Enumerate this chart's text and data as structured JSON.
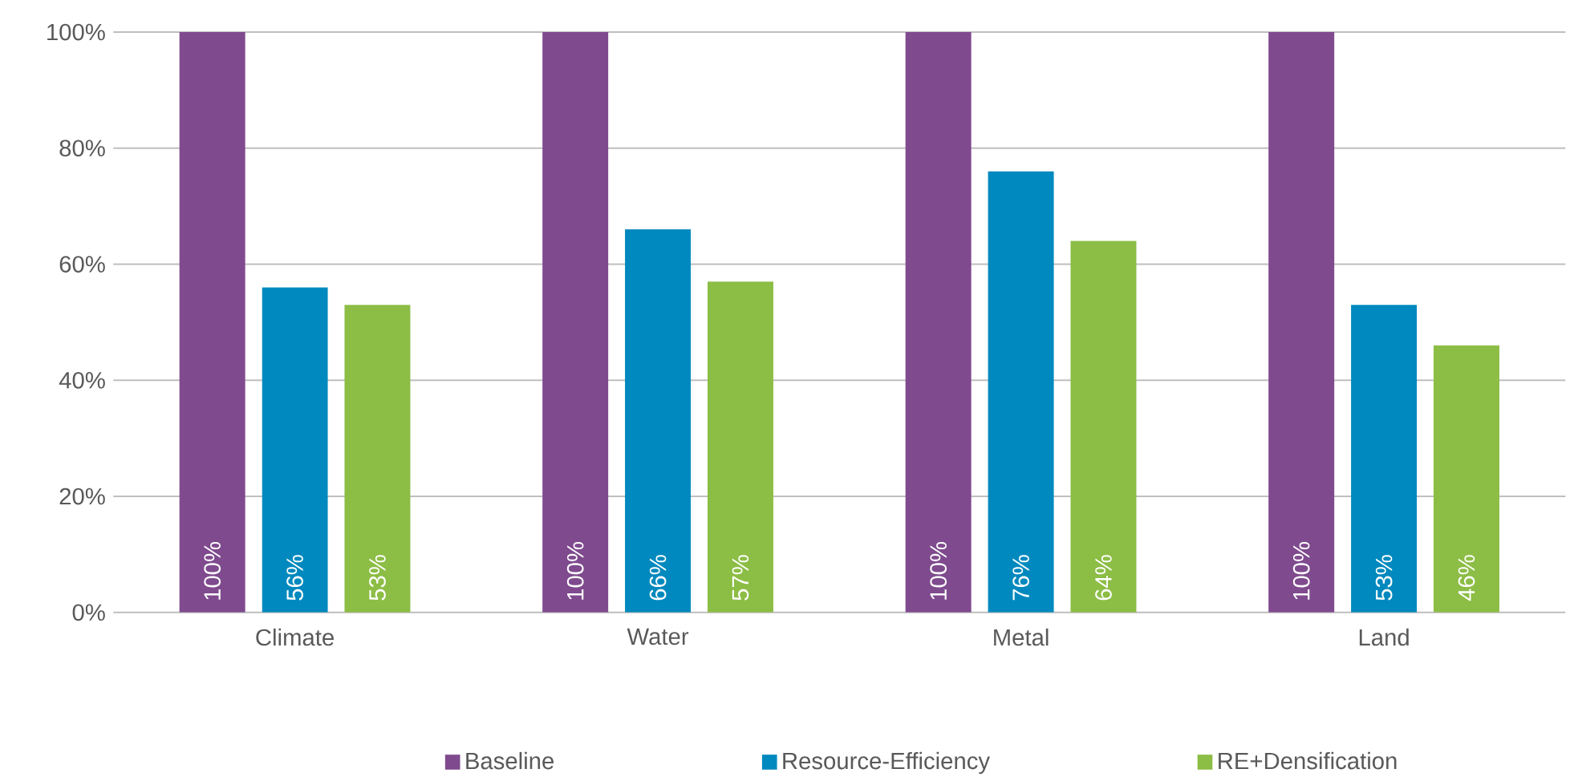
{
  "chart_data": {
    "type": "bar",
    "categories": [
      "Climate",
      "Water",
      "Metal",
      "Land"
    ],
    "series": [
      {
        "name": "Baseline",
        "color": "#7f4a8e",
        "values": [
          100,
          100,
          100,
          100
        ],
        "value_labels": [
          "100%",
          "100%",
          "100%",
          "100%"
        ]
      },
      {
        "name": "Resource-Efficiency",
        "color": "#0089be",
        "values": [
          56,
          66,
          76,
          53
        ],
        "value_labels": [
          "56%",
          "66%",
          "76%",
          "53%"
        ]
      },
      {
        "name": "RE+Densification",
        "color": "#8cbd45",
        "values": [
          53,
          57,
          64,
          46
        ],
        "value_labels": [
          "53%",
          "57%",
          "64%",
          "46%"
        ]
      }
    ],
    "ylim": [
      0,
      100
    ],
    "yticks": [
      {
        "value": 0,
        "label": "0%"
      },
      {
        "value": 20,
        "label": "20%"
      },
      {
        "value": 40,
        "label": "40%"
      },
      {
        "value": 60,
        "label": "60%"
      },
      {
        "value": 80,
        "label": "80%"
      },
      {
        "value": 100,
        "label": "100%"
      }
    ],
    "grid": "y",
    "legend": "bottom"
  }
}
